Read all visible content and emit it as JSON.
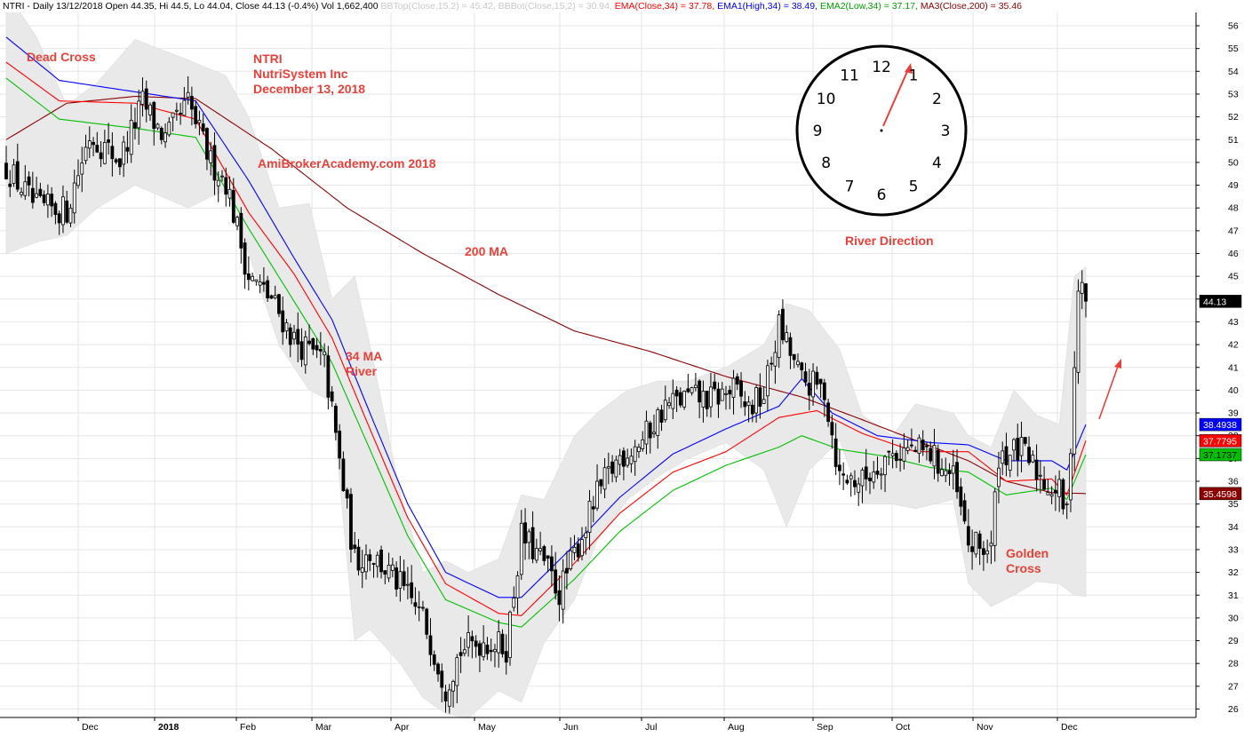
{
  "header": {
    "title": "NTRI - Daily 13/12/2018 Open 44.35, Hi 44.5, Lo 44.04, Close 44.13 (-0.4%) Vol 1,662,400",
    "bbtop": "BBTop(Close,15,2) = 45.42,",
    "bbbot": "BBBot(Close,15,2) = 30.94,",
    "ema": "EMA(Close,34) = 37.78,",
    "ema1": "EMA1(High,34) = 38.49,",
    "ema2": "EMA2(Low,34) = 37.17,",
    "ma3": "MA3(Close,200) = 35.46"
  },
  "annotations": {
    "dead_cross": "Dead Cross",
    "ticker": "NTRI",
    "company": "NutriSystem Inc",
    "date": "December 13, 2018",
    "site": "AmiBrokerAcademy.com  2018",
    "ma200": "200 MA",
    "river1": "34 MA",
    "river2": "River",
    "river_direction": "River Direction",
    "golden1": "Golden",
    "golden2": "Cross"
  },
  "clock": {
    "numbers": [
      "12",
      "1",
      "2",
      "3",
      "4",
      "5",
      "6",
      "7",
      "8",
      "9",
      "10",
      "11"
    ]
  },
  "colors": {
    "ema_close": "#ff0000",
    "ema_high": "#0000ff",
    "ema_low": "#00c000",
    "ma200": "#8b0000",
    "bollinger": "#e9e9e9",
    "annotation": "#e8413a",
    "candle": "#000000"
  },
  "chart_data": {
    "type": "candlestick",
    "x_ticks": [
      "Dec",
      "2018",
      "Feb",
      "Mar",
      "Apr",
      "May",
      "Jun",
      "Jul",
      "Aug",
      "Sep",
      "Oct",
      "Nov",
      "Dec"
    ],
    "y_ticks": [
      26,
      27,
      28,
      29,
      30,
      31,
      32,
      33,
      34,
      35,
      36,
      37,
      38,
      39,
      40,
      41,
      42,
      43,
      44,
      45,
      46,
      47,
      48,
      49,
      50,
      51,
      52,
      53,
      54,
      55,
      56
    ],
    "ylim": [
      25.5,
      56.5
    ],
    "grid": true,
    "last_close_label": "44.13",
    "value_labels": {
      "ema_high": "38.4938",
      "ema_close": "37.7795",
      "ema_low": "37.1737",
      "ma200": "35.4598"
    },
    "close_anchors": [
      [
        0,
        49.8
      ],
      [
        8,
        48.0
      ],
      [
        16,
        47.9
      ],
      [
        22,
        51.2
      ],
      [
        30,
        50.1
      ],
      [
        36,
        52.6
      ],
      [
        42,
        51.0
      ],
      [
        48,
        52.6
      ],
      [
        54,
        50.0
      ],
      [
        58,
        49.2
      ],
      [
        64,
        45.0
      ],
      [
        70,
        44.0
      ],
      [
        76,
        42.2
      ],
      [
        84,
        41.2
      ],
      [
        92,
        32.5
      ],
      [
        96,
        32.9
      ],
      [
        104,
        31.4
      ],
      [
        110,
        30.0
      ],
      [
        116,
        27.0
      ],
      [
        120,
        28.6
      ],
      [
        126,
        29.0
      ],
      [
        132,
        28.7
      ],
      [
        136,
        33.6
      ],
      [
        142,
        32.4
      ],
      [
        146,
        31.1
      ],
      [
        150,
        32.8
      ],
      [
        156,
        35.4
      ],
      [
        162,
        37.1
      ],
      [
        168,
        37.8
      ],
      [
        174,
        39.3
      ],
      [
        180,
        39.7
      ],
      [
        186,
        39.6
      ],
      [
        192,
        40.0
      ],
      [
        196,
        39.2
      ],
      [
        200,
        39.8
      ],
      [
        204,
        42.8
      ],
      [
        210,
        40.4
      ],
      [
        216,
        40.0
      ],
      [
        220,
        36.2
      ],
      [
        226,
        36.0
      ],
      [
        232,
        37.1
      ],
      [
        238,
        37.4
      ],
      [
        244,
        37.2
      ],
      [
        250,
        36.1
      ],
      [
        254,
        33.2
      ],
      [
        260,
        33.0
      ],
      [
        262,
        37.2
      ],
      [
        268,
        37.3
      ],
      [
        274,
        36.0
      ],
      [
        278,
        35.5
      ],
      [
        280,
        34.5
      ],
      [
        283,
        44.5
      ],
      [
        285,
        44.13
      ]
    ],
    "ema_close_anchors": [
      [
        0,
        54.4
      ],
      [
        14,
        52.7
      ],
      [
        34,
        52.6
      ],
      [
        50,
        51.9
      ],
      [
        64,
        47.8
      ],
      [
        76,
        45.1
      ],
      [
        86,
        42.3
      ],
      [
        96,
        38.3
      ],
      [
        106,
        34.4
      ],
      [
        116,
        31.5
      ],
      [
        130,
        30.2
      ],
      [
        136,
        30.1
      ],
      [
        150,
        32.4
      ],
      [
        162,
        34.6
      ],
      [
        176,
        36.4
      ],
      [
        190,
        37.3
      ],
      [
        204,
        38.8
      ],
      [
        214,
        39.1
      ],
      [
        226,
        38.1
      ],
      [
        240,
        37.3
      ],
      [
        254,
        37.3
      ],
      [
        264,
        36.0
      ],
      [
        276,
        36.1
      ],
      [
        280,
        35.4
      ],
      [
        285,
        37.78
      ]
    ],
    "ema_high_anchors": [
      [
        0,
        55.5
      ],
      [
        14,
        53.6
      ],
      [
        34,
        53.1
      ],
      [
        50,
        52.7
      ],
      [
        64,
        49.2
      ],
      [
        76,
        45.8
      ],
      [
        86,
        43.1
      ],
      [
        96,
        39.0
      ],
      [
        106,
        35.0
      ],
      [
        116,
        32.0
      ],
      [
        130,
        30.9
      ],
      [
        136,
        30.9
      ],
      [
        150,
        33.2
      ],
      [
        162,
        35.3
      ],
      [
        176,
        37.2
      ],
      [
        190,
        38.3
      ],
      [
        204,
        39.3
      ],
      [
        210,
        40.5
      ],
      [
        218,
        39.0
      ],
      [
        230,
        38.0
      ],
      [
        244,
        37.7
      ],
      [
        254,
        37.6
      ],
      [
        264,
        36.9
      ],
      [
        276,
        36.9
      ],
      [
        280,
        36.5
      ],
      [
        285,
        38.49
      ]
    ],
    "ema_low_anchors": [
      [
        0,
        53.7
      ],
      [
        14,
        51.9
      ],
      [
        34,
        51.5
      ],
      [
        50,
        51.1
      ],
      [
        64,
        47.1
      ],
      [
        76,
        43.9
      ],
      [
        86,
        41.2
      ],
      [
        96,
        37.4
      ],
      [
        106,
        33.6
      ],
      [
        116,
        30.8
      ],
      [
        130,
        29.8
      ],
      [
        136,
        29.6
      ],
      [
        150,
        31.7
      ],
      [
        162,
        33.8
      ],
      [
        176,
        35.6
      ],
      [
        190,
        36.7
      ],
      [
        204,
        37.5
      ],
      [
        210,
        38.0
      ],
      [
        220,
        37.4
      ],
      [
        232,
        37.1
      ],
      [
        244,
        36.6
      ],
      [
        254,
        36.4
      ],
      [
        264,
        35.4
      ],
      [
        276,
        35.7
      ],
      [
        280,
        35.2
      ],
      [
        285,
        37.17
      ]
    ],
    "ma200_anchors": [
      [
        0,
        51.0
      ],
      [
        16,
        52.6
      ],
      [
        34,
        52.9
      ],
      [
        50,
        52.8
      ],
      [
        70,
        50.6
      ],
      [
        90,
        48.0
      ],
      [
        110,
        46.0
      ],
      [
        130,
        44.2
      ],
      [
        150,
        42.6
      ],
      [
        170,
        41.7
      ],
      [
        190,
        40.6
      ],
      [
        210,
        39.7
      ],
      [
        226,
        38.7
      ],
      [
        240,
        37.8
      ],
      [
        254,
        36.9
      ],
      [
        264,
        36.0
      ],
      [
        276,
        35.5
      ],
      [
        285,
        35.46
      ]
    ],
    "bb_upper_anchors": [
      [
        0,
        57.5
      ],
      [
        8,
        55.5
      ],
      [
        16,
        52.5
      ],
      [
        24,
        53.5
      ],
      [
        34,
        55.4
      ],
      [
        48,
        54.5
      ],
      [
        58,
        53.8
      ],
      [
        64,
        52.0
      ],
      [
        72,
        48.0
      ],
      [
        80,
        48.2
      ],
      [
        86,
        44.0
      ],
      [
        92,
        45.0
      ],
      [
        96,
        42.0
      ],
      [
        104,
        35.5
      ],
      [
        110,
        32.0
      ],
      [
        116,
        32.5
      ],
      [
        122,
        32.0
      ],
      [
        130,
        32.6
      ],
      [
        136,
        35.4
      ],
      [
        142,
        35.2
      ],
      [
        150,
        38.0
      ],
      [
        156,
        39.0
      ],
      [
        164,
        40.0
      ],
      [
        172,
        40.4
      ],
      [
        180,
        40.4
      ],
      [
        190,
        41.0
      ],
      [
        200,
        42.0
      ],
      [
        206,
        43.8
      ],
      [
        212,
        43.5
      ],
      [
        220,
        41.8
      ],
      [
        226,
        38.9
      ],
      [
        234,
        38.0
      ],
      [
        240,
        39.4
      ],
      [
        250,
        39.0
      ],
      [
        254,
        38.0
      ],
      [
        260,
        37.5
      ],
      [
        266,
        40.0
      ],
      [
        272,
        38.9
      ],
      [
        278,
        38.5
      ],
      [
        282,
        45.0
      ],
      [
        285,
        45.42
      ]
    ],
    "bb_lower_anchors": [
      [
        0,
        46.0
      ],
      [
        8,
        46.5
      ],
      [
        16,
        46.8
      ],
      [
        24,
        48.0
      ],
      [
        34,
        49.0
      ],
      [
        48,
        48.0
      ],
      [
        58,
        48.8
      ],
      [
        64,
        46.0
      ],
      [
        72,
        42.0
      ],
      [
        80,
        40.0
      ],
      [
        86,
        39.5
      ],
      [
        92,
        29.0
      ],
      [
        96,
        29.5
      ],
      [
        104,
        28.0
      ],
      [
        110,
        26.5
      ],
      [
        116,
        25.8
      ],
      [
        122,
        25.6
      ],
      [
        130,
        26.8
      ],
      [
        136,
        26.3
      ],
      [
        142,
        28.9
      ],
      [
        150,
        30.8
      ],
      [
        156,
        33.4
      ],
      [
        164,
        35.2
      ],
      [
        172,
        36.2
      ],
      [
        180,
        37.0
      ],
      [
        190,
        37.7
      ],
      [
        200,
        36.5
      ],
      [
        206,
        34.0
      ],
      [
        212,
        36.5
      ],
      [
        220,
        37.8
      ],
      [
        226,
        35.0
      ],
      [
        234,
        35.0
      ],
      [
        240,
        34.8
      ],
      [
        250,
        35.2
      ],
      [
        254,
        31.5
      ],
      [
        260,
        30.5
      ],
      [
        266,
        31.0
      ],
      [
        272,
        31.6
      ],
      [
        278,
        31.5
      ],
      [
        282,
        31.0
      ],
      [
        285,
        30.94
      ]
    ]
  }
}
